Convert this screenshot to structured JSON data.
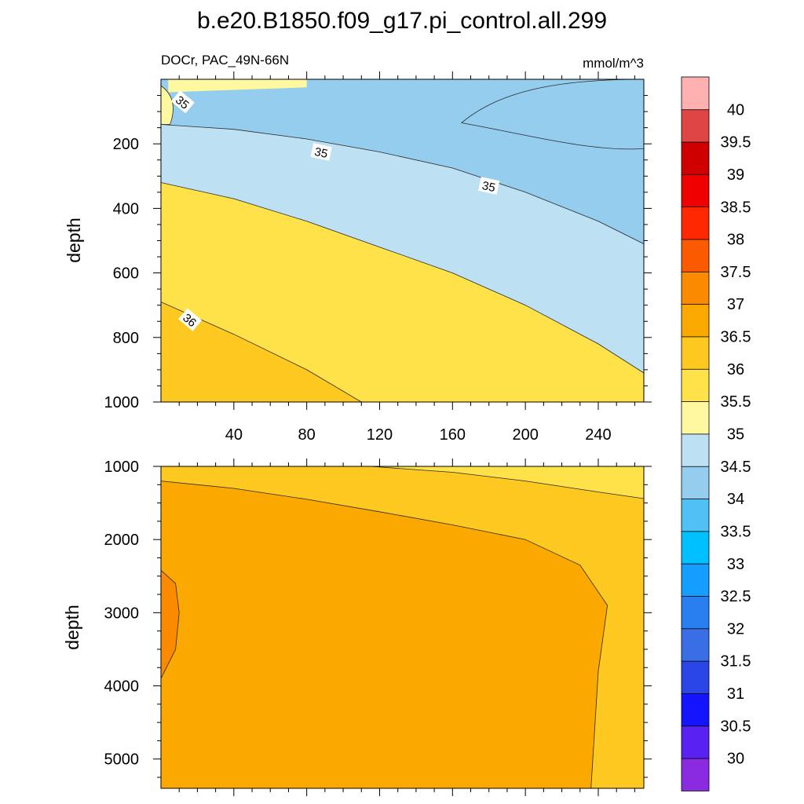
{
  "chart_data": {
    "type": "contour",
    "title": "b.e20.B1850.f09_g17.pi_control.all.299",
    "subtitle_left": "DOCr, PAC_49N-66N",
    "units": "mmol/m^3",
    "ylabel": "depth",
    "x_ticks": [
      40,
      80,
      120,
      160,
      200,
      240
    ],
    "xlim": [
      0,
      265
    ],
    "panels": [
      {
        "name": "upper",
        "ylim": [
          0,
          1000
        ],
        "y_ticks": [
          "200",
          "400",
          "600",
          "800",
          "1000"
        ],
        "y_tick_values": [
          200,
          400,
          600,
          800,
          1000
        ],
        "contour_labels": [
          {
            "text": "35",
            "x": 12,
            "depth": 70
          },
          {
            "text": "35",
            "x": 88,
            "depth": 225
          },
          {
            "text": "35",
            "x": 180,
            "depth": 330
          },
          {
            "text": "36",
            "x": 16,
            "depth": 745
          }
        ],
        "boundaries": [
          {
            "level": 34.5,
            "x": [
              0,
              40,
              80,
              120,
              160,
              200,
              240,
              265
            ],
            "depth": [
              140,
              155,
              185,
              225,
              275,
              350,
              440,
              510
            ]
          },
          {
            "level": 35.5,
            "x": [
              0,
              40,
              80,
              120,
              160,
              200,
              240,
              265
            ],
            "depth": [
              320,
              370,
              440,
              520,
              600,
              700,
              820,
              910
            ]
          },
          {
            "level": 36.0,
            "x": [
              0,
              40,
              80,
              110
            ],
            "depth": [
              690,
              790,
              900,
              1000
            ]
          }
        ]
      },
      {
        "name": "lower",
        "ylim": [
          1000,
          5400
        ],
        "y_ticks": [
          "1000",
          "2000",
          "3000",
          "4000",
          "5000"
        ],
        "y_tick_values": [
          1000,
          2000,
          3000,
          4000,
          5000
        ],
        "boundaries": [
          {
            "level": 36.0,
            "x": [
              115,
              160,
              200,
              240,
              265
            ],
            "depth": [
              1000,
              1080,
              1200,
              1350,
              1440
            ]
          },
          {
            "level": 36.5,
            "x": [
              0,
              40,
              80,
              120,
              160,
              200,
              230,
              245,
              240,
              236
            ],
            "depth": [
              1200,
              1300,
              1450,
              1620,
              1800,
              2000,
              2350,
              2900,
              3800,
              5400
            ]
          },
          {
            "level": 37.0,
            "x": [
              0,
              8,
              10,
              8,
              0
            ],
            "depth": [
              2420,
              2600,
              3000,
              3500,
              3900
            ]
          }
        ]
      }
    ],
    "colorbar": {
      "labels": [
        "30",
        "30.5",
        "31",
        "31.5",
        "32",
        "32.5",
        "33",
        "33.5",
        "34",
        "34.5",
        "35",
        "35.5",
        "36",
        "36.5",
        "37",
        "37.5",
        "38",
        "38.5",
        "39",
        "39.5",
        "40"
      ],
      "colors": [
        "#8a2be2",
        "#5a22f0",
        "#1414ff",
        "#2a46e6",
        "#3a6ee6",
        "#2a7ff0",
        "#149eff",
        "#00c0ff",
        "#50c0f5",
        "#95cdee",
        "#bde0f3",
        "#fff8a0",
        "#ffe14a",
        "#fdc81f",
        "#fba800",
        "#fa8a00",
        "#fc5a00",
        "#ff2800",
        "#f00000",
        "#d00000",
        "#de4545",
        "#ffb0b0"
      ]
    }
  }
}
